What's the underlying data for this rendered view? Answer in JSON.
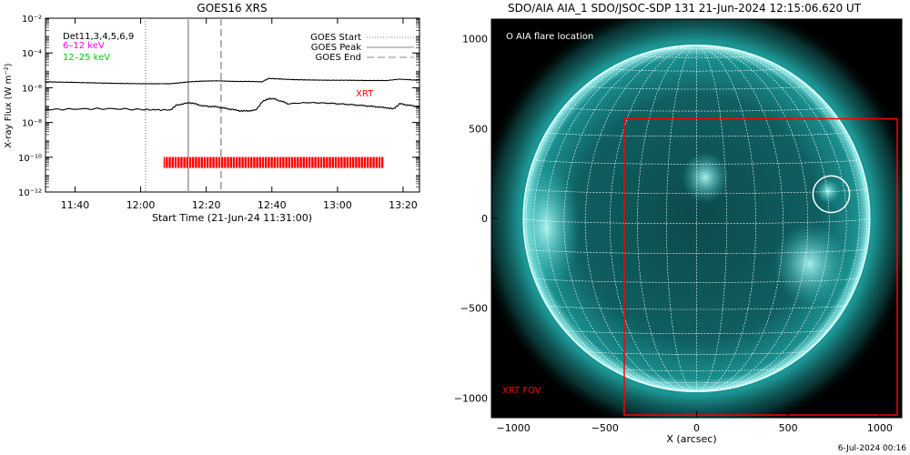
{
  "goes_panel": {
    "title": "GOES16 XRS",
    "legend_left": [
      "Det11,3,4,5,6,9",
      "6–12 keV",
      "12–25 keV"
    ],
    "legend_left_colors": [
      "#000000",
      "#ff00ff",
      "#00cc00"
    ],
    "legend_right": [
      "GOES Start",
      "GOES Peak",
      "GOES End"
    ],
    "xrt_label": "XRT",
    "xrt_color": "#ff0000"
  },
  "aia_panel": {
    "title": "SDO/AIA AIA_1 SDO/JSOC-SDP 131 21-Jun-2024 12:15:06.620 UT",
    "flare_legend": "O AIA flare location",
    "fov_label": "XRT FOV",
    "fov_color": "#ff0000",
    "footer": "6-Jul-2024 00:16",
    "disk_color": "#0fb4b4"
  },
  "chart_data": [
    {
      "type": "line",
      "title": "GOES16 XRS",
      "xlabel": "Start Time (21-Jun-24 11:31:00)",
      "ylabel": "X-ray Flux (W m⁻²)",
      "x_unit": "minutes since 11:31:00",
      "xlim": [
        0,
        114
      ],
      "x_ticks": [
        9,
        29,
        49,
        69,
        89,
        109
      ],
      "x_tick_labels": [
        "11:40",
        "12:00",
        "12:20",
        "12:40",
        "13:00",
        "13:20"
      ],
      "yscale": "log",
      "ylim": [
        1e-12,
        0.01
      ],
      "y_ticks": [
        1e-12,
        1e-10,
        1e-08,
        1e-06,
        0.0001,
        0.01
      ],
      "y_tick_labels": [
        "10⁻¹²",
        "10⁻¹⁰",
        "10⁻⁸",
        "10⁻⁶",
        "10⁻⁴",
        "10⁻²"
      ],
      "grid": false,
      "series": [
        {
          "color": "#000000",
          "x": [
            0,
            10,
            20,
            30,
            38,
            44,
            48,
            52,
            58,
            62,
            66,
            68,
            70,
            74,
            80,
            86,
            92,
            98,
            104,
            108,
            112,
            114
          ],
          "values": [
            2.2e-06,
            2e-06,
            1.8e-06,
            1.7e-06,
            1.7e-06,
            2.2e-06,
            2.4e-06,
            2.5e-06,
            2.3e-06,
            2.3e-06,
            2.2e-06,
            3.4e-06,
            3.3e-06,
            3e-06,
            2.8e-06,
            2.7e-06,
            2.7e-06,
            2.6e-06,
            2.6e-06,
            3.1e-06,
            2.8e-06,
            2.7e-06
          ]
        },
        {
          "color": "#000000",
          "x": [
            0,
            10,
            20,
            30,
            38,
            40,
            44,
            48,
            52,
            56,
            60,
            64,
            66,
            68,
            70,
            74,
            80,
            86,
            92,
            98,
            104,
            106,
            108,
            112,
            114
          ],
          "values": [
            5.5e-08,
            6e-08,
            6.2e-08,
            5.5e-08,
            5.2e-08,
            1e-07,
            1.4e-07,
            9e-08,
            8e-08,
            6e-08,
            4.5e-08,
            5e-08,
            1.5e-07,
            2.4e-07,
            2.2e-07,
            1.2e-07,
            1.4e-07,
            1.3e-07,
            1.1e-07,
            9e-08,
            7e-08,
            6e-08,
            1.2e-07,
            9e-08,
            8e-08
          ]
        }
      ],
      "vlines": [
        {
          "name": "GOES Start",
          "x": 30.5,
          "style": "dotted"
        },
        {
          "name": "GOES Peak",
          "x": 43.5,
          "style": "solid"
        },
        {
          "name": "GOES End",
          "x": 53.5,
          "style": "dashed"
        }
      ],
      "xrt_coverage": {
        "label": "XRT",
        "x_start": 36,
        "x_end": 103,
        "y": 5e-11
      }
    },
    {
      "type": "scatter",
      "title": "SDO/AIA AIA_1 SDO/JSOC-SDP 131 21-Jun-2024 12:15:06.620 UT",
      "xlabel": "X (arcsec)",
      "ylabel": "",
      "xlim": [
        -1120,
        1120
      ],
      "ylim": [
        -1110,
        1110
      ],
      "x_ticks": [
        -1000,
        -500,
        0,
        500,
        1000
      ],
      "y_ticks": [
        -1000,
        -500,
        0,
        500,
        1000
      ],
      "solar_radius_arcsec": 945,
      "flare_location": {
        "x": 735,
        "y": 135,
        "radius": 100
      },
      "xrt_fov": {
        "label": "XRT FOV",
        "x_min": -395,
        "x_max": 1095,
        "y_min": -1095,
        "y_max": 555
      }
    }
  ]
}
